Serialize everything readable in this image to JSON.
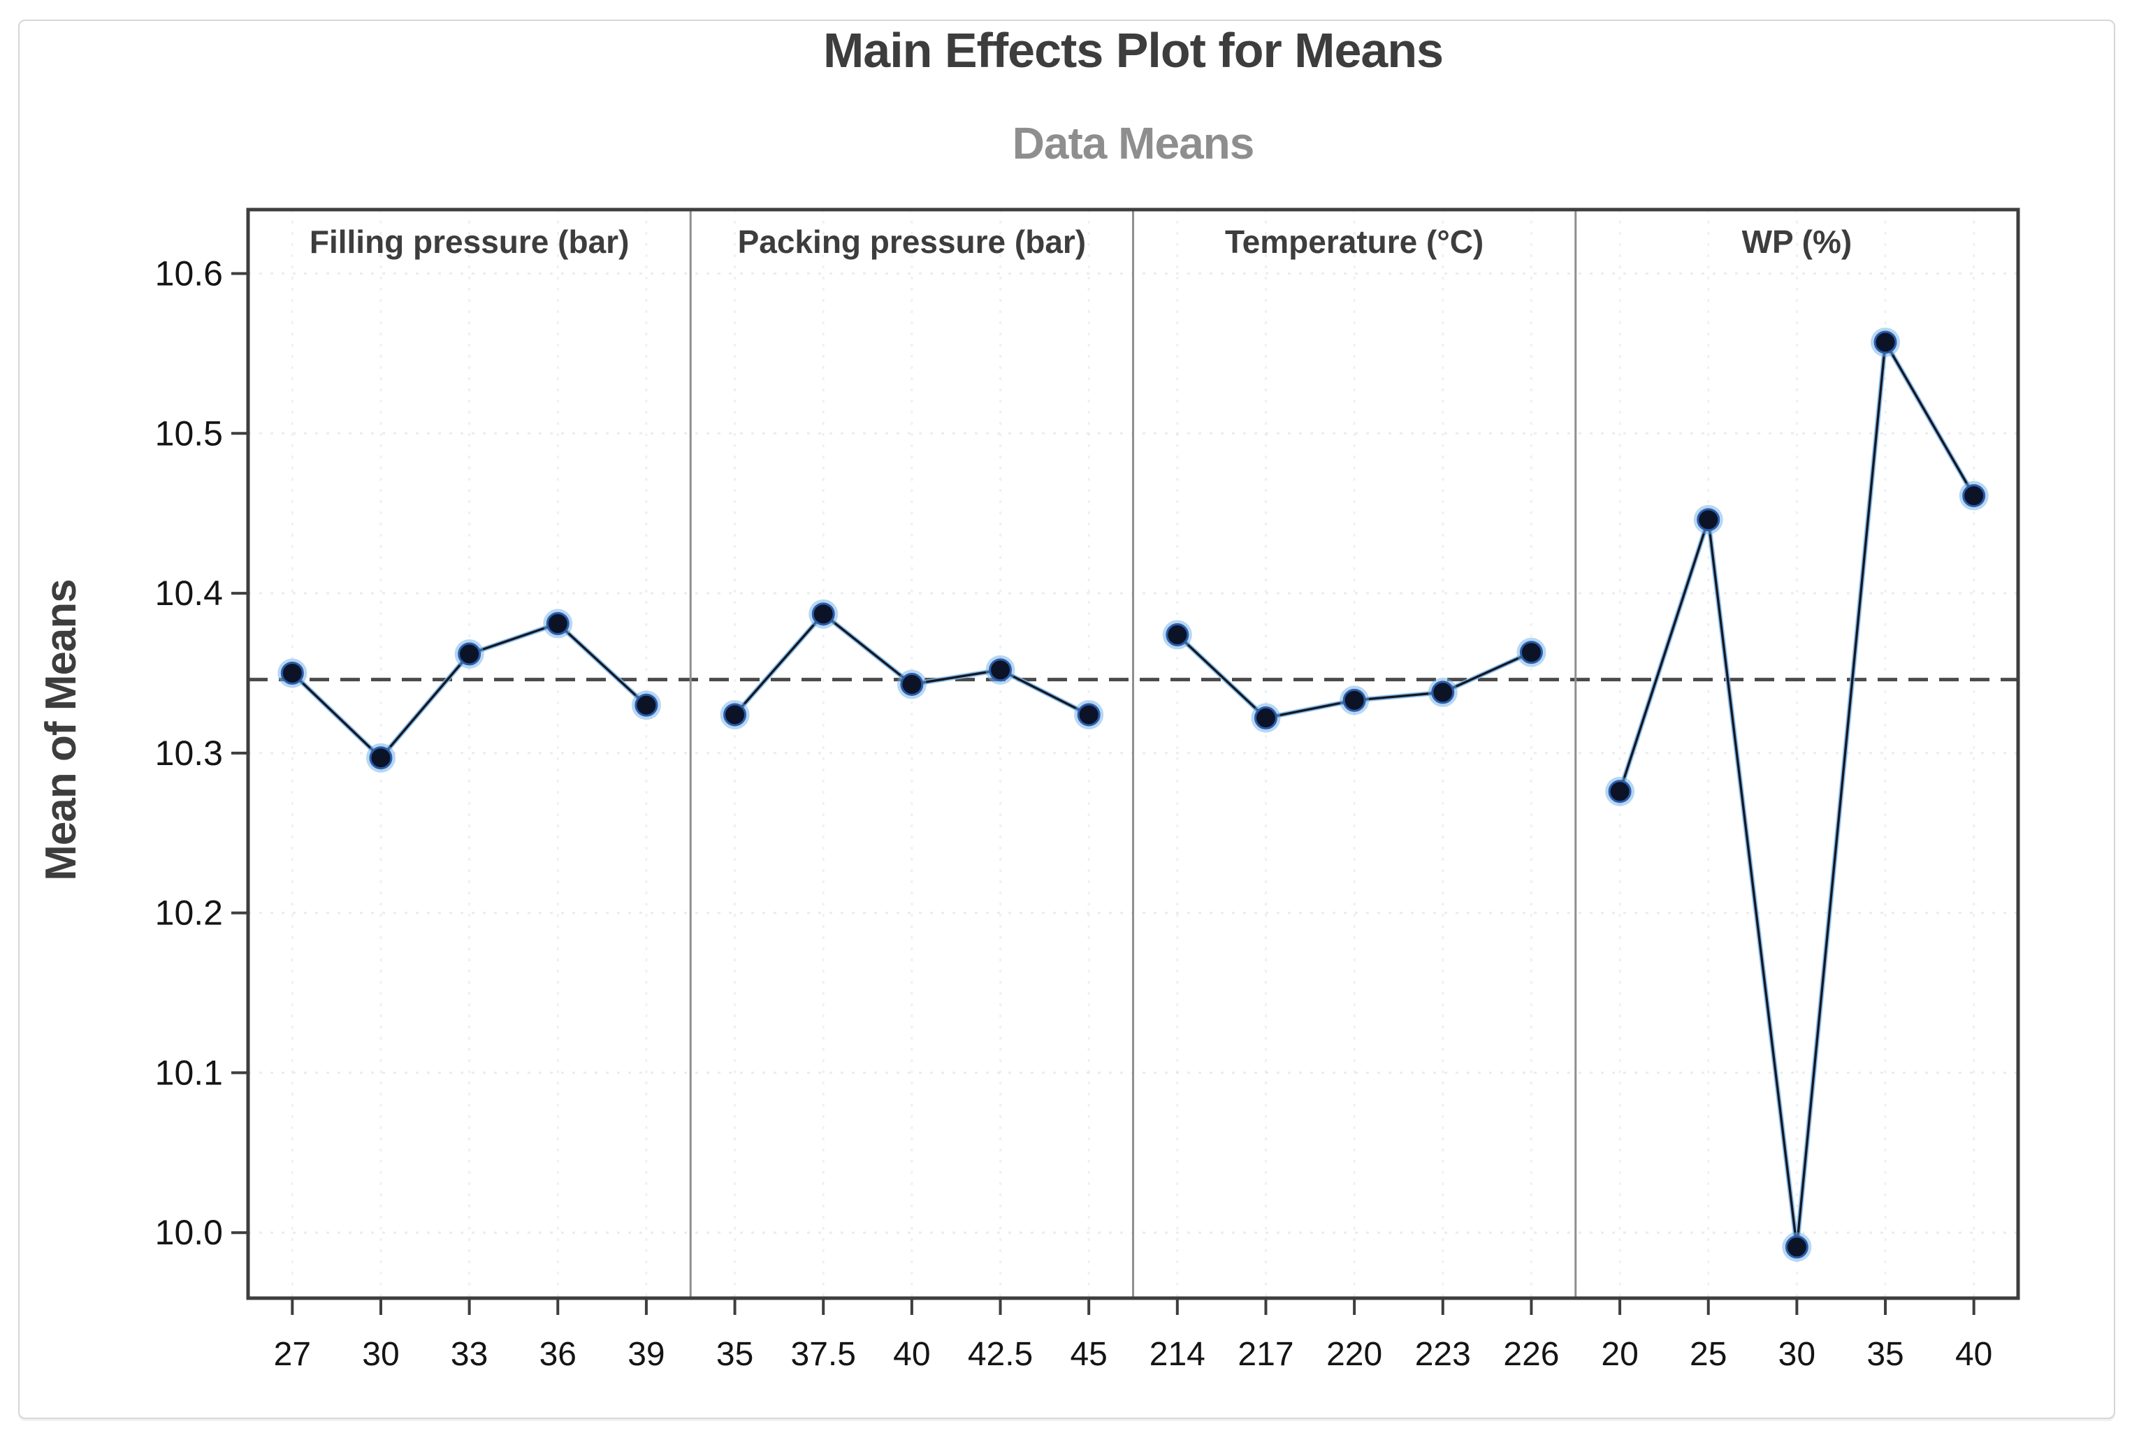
{
  "title": "Main Effects Plot for Means",
  "subtitle": "Data Means",
  "y_axis": {
    "label": "Mean of Means",
    "tick_labels": [
      "10.6",
      "10.5",
      "10.4",
      "10.3",
      "10.2",
      "10.1",
      "10.0"
    ]
  },
  "colors": {
    "title_text": "#3d3d3d",
    "subtitle_text": "#8e8e8e",
    "panel_header_text": "#3d3d3d",
    "tick_label_text": "#141414",
    "plot_border": "#3e3e3e",
    "panel_divider": "#8f8f8f",
    "mean_line": "#4a4a4a",
    "series_line_dark": "#141824",
    "series_line_halo": "#7db6ea",
    "marker_core": "#0c1326",
    "marker_ring": "#2a5cae",
    "marker_halo": "#6fb0e6",
    "h_gridline": "#e4e4e4",
    "v_gridline": "#dde6ee"
  },
  "chart_data": {
    "type": "line",
    "title": "Main Effects Plot for Means",
    "subtitle": "Data Means",
    "ylabel": "Mean of Means",
    "xlabel": "",
    "ylim": [
      9.959,
      10.64
    ],
    "yticks": [
      10.0,
      10.1,
      10.2,
      10.3,
      10.4,
      10.5,
      10.6
    ],
    "grid": "faint dotted horizontal and vertical at ticks",
    "legend_position": "none",
    "grand_mean": 10.346,
    "grand_mean_line_style": "dashed",
    "panels": [
      {
        "factor": "Filling pressure (bar)",
        "categories": [
          "27",
          "30",
          "33",
          "36",
          "39"
        ],
        "values": [
          10.35,
          10.297,
          10.362,
          10.381,
          10.33
        ]
      },
      {
        "factor": "Packing pressure (bar)",
        "categories": [
          "35",
          "37.5",
          "40",
          "42.5",
          "45"
        ],
        "values": [
          10.324,
          10.387,
          10.343,
          10.352,
          10.324
        ]
      },
      {
        "factor": "Temperature (°C)",
        "categories": [
          "214",
          "217",
          "220",
          "223",
          "226"
        ],
        "values": [
          10.374,
          10.322,
          10.333,
          10.338,
          10.363
        ]
      },
      {
        "factor": "WP (%)",
        "categories": [
          "20",
          "25",
          "30",
          "35",
          "40"
        ],
        "values": [
          10.276,
          10.446,
          9.991,
          10.557,
          10.461
        ]
      }
    ]
  }
}
